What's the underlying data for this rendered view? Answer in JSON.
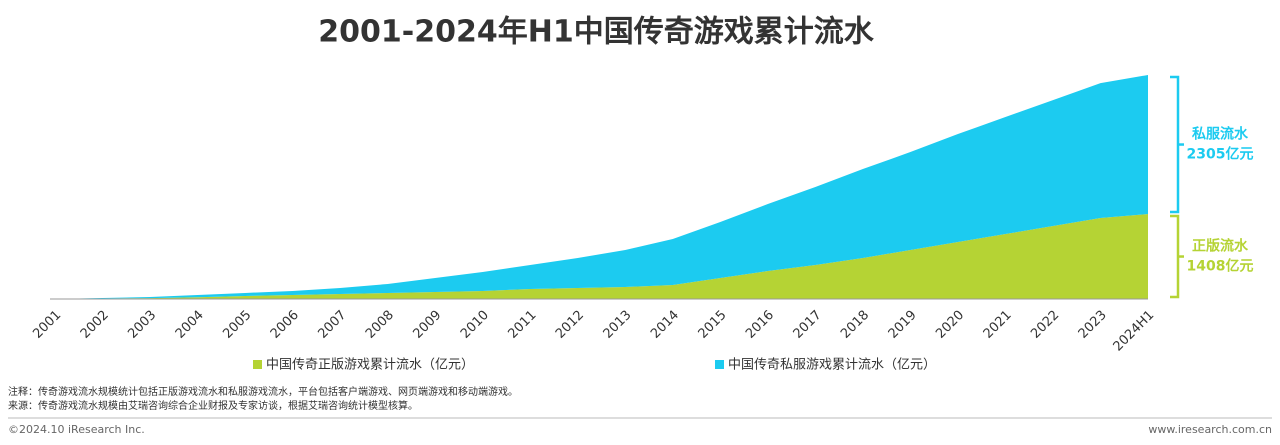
{
  "chart_data": {
    "type": "stacked_area",
    "title": "2001-2024年H1中国传奇游戏累计流水",
    "categories": [
      "2001",
      "2002",
      "2003",
      "2004",
      "2005",
      "2006",
      "2007",
      "2008",
      "2009",
      "2010",
      "2011",
      "2012",
      "2013",
      "2014",
      "2015",
      "2016",
      "2017",
      "2018",
      "2019",
      "2020",
      "2021",
      "2022",
      "2023",
      "2024H1"
    ],
    "series": [
      {
        "name": "中国传奇正版游戏累计流水（亿元）",
        "color": "#b5d334",
        "values": [
          0,
          8,
          15,
          30,
          50,
          66,
          83,
          100,
          116,
          133,
          166,
          182,
          199,
          232,
          348,
          464,
          563,
          680,
          812,
          945,
          1077,
          1210,
          1342,
          1408
        ]
      },
      {
        "name": "中国传奇私服游戏累计流水（亿元）",
        "color": "#1ccbf0",
        "values": [
          0,
          9,
          18,
          36,
          50,
          67,
          99,
          149,
          232,
          314,
          397,
          498,
          613,
          762,
          928,
          1110,
          1293,
          1474,
          1624,
          1789,
          1939,
          2087,
          2237,
          2305
        ]
      }
    ],
    "annotations": [
      {
        "label": "私服流水",
        "text": "2305亿元",
        "series": 1
      },
      {
        "label": "正版流水",
        "text": "1408亿元",
        "series": 0
      }
    ],
    "legend": "bottom"
  },
  "notes": [
    "注释：传奇游戏流水规模统计包括正版游戏流水和私服游戏流水，平台包括客户端游戏、网页端游戏和移动端游戏。",
    "来源：传奇游戏流水规模由艾瑞咨询综合企业财报及专家访谈，根据艾瑞咨询统计模型核算。"
  ],
  "footer": {
    "left": "©2024.10 iResearch Inc.",
    "right": "www.iresearch.com.cn"
  }
}
